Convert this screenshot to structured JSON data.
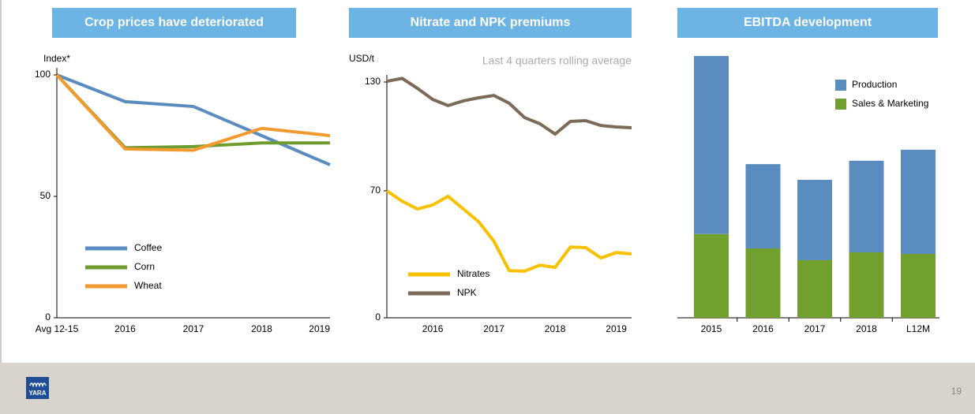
{
  "chart_data": [
    {
      "type": "line",
      "title": "Crop prices have deteriorated",
      "y_label": "Index*",
      "categories": [
        "Avg 12-15",
        "2016",
        "2017",
        "2018",
        "2019"
      ],
      "ylim": [
        0,
        100
      ],
      "yticks": [
        0,
        50,
        100
      ],
      "series": [
        {
          "name": "Coffee",
          "color": "#5b8cbf",
          "values": [
            100,
            89,
            87,
            75,
            63
          ]
        },
        {
          "name": "Corn",
          "color": "#6e9c2e",
          "values": [
            100,
            70,
            70.5,
            72,
            72
          ]
        },
        {
          "name": "Wheat",
          "color": "#f39a2f",
          "values": [
            100,
            69.5,
            69,
            78,
            75
          ]
        }
      ]
    },
    {
      "type": "line",
      "title": "Nitrate and NPK premiums",
      "y_label": "USD/t",
      "annotation": "Last 4 quarters rolling average",
      "categories": [
        null,
        null,
        null,
        "2016",
        null,
        null,
        null,
        "2017",
        null,
        null,
        null,
        "2018",
        null,
        null,
        null,
        "2019",
        null
      ],
      "ylim": [
        0,
        130
      ],
      "yticks": [
        0,
        70,
        130
      ],
      "series": [
        {
          "name": "Nitrates",
          "color": "#f8c100",
          "values": [
            70,
            64.3,
            60,
            62.2,
            67,
            60,
            53,
            42.2,
            26,
            25.7,
            29,
            27.8,
            39,
            38.7,
            33,
            36,
            35.2
          ]
        },
        {
          "name": "NPK",
          "color": "#7b6a58",
          "values": [
            130.4,
            132,
            126.5,
            120.4,
            117,
            119.6,
            121.3,
            122.6,
            118.3,
            110.4,
            107,
            101.3,
            108.3,
            108.7,
            106,
            105.2,
            104.8
          ]
        }
      ]
    },
    {
      "type": "bar",
      "title": "EBITDA development",
      "stacked": true,
      "categories": [
        "2015",
        "2016",
        "2017",
        "2018",
        "L12M"
      ],
      "ylim": [
        0,
        100
      ],
      "series": [
        {
          "name": "Production",
          "color": "#5b8cbf",
          "values": [
            68,
            32.2,
            30.7,
            35,
            39.8
          ]
        },
        {
          "name": "Sales & Marketing",
          "color": "#71a02f",
          "values": [
            32,
            26.5,
            22,
            25,
            24.4
          ]
        }
      ]
    }
  ],
  "page_number": "19",
  "logo": "YARA"
}
